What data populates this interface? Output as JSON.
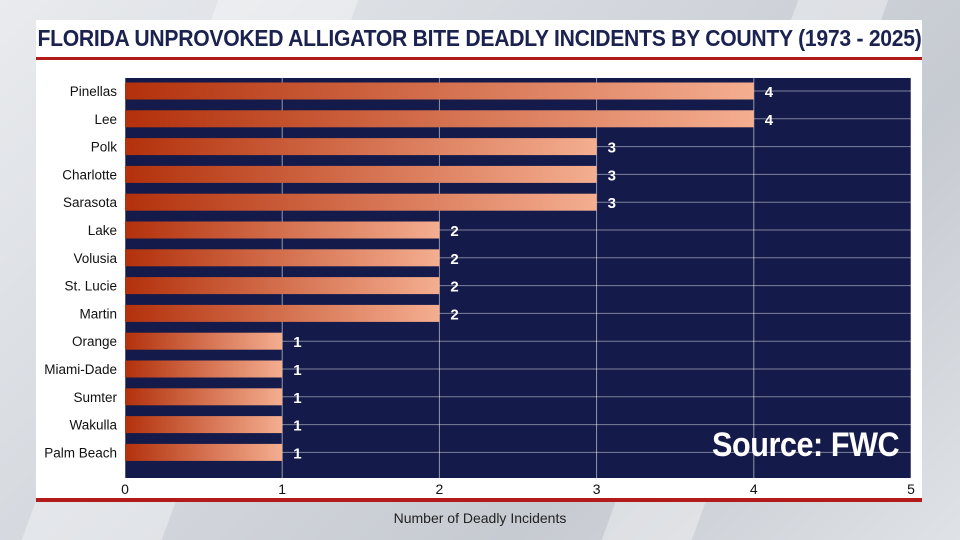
{
  "chart_data": {
    "type": "bar",
    "orientation": "horizontal",
    "title": "FLORIDA UNPROVOKED ALLIGATOR BITE DEADLY INCIDENTS BY COUNTY (1973 - 2025)",
    "xlabel": "Number of Deadly Incidents",
    "ylabel": "",
    "xlim": [
      0,
      5
    ],
    "xticks": [
      "0",
      "1",
      "2",
      "3",
      "4",
      "5"
    ],
    "categories": [
      "Pinellas",
      "Lee",
      "Polk",
      "Charlotte",
      "Sarasota",
      "Lake",
      "Volusia",
      "St. Lucie",
      "Martin",
      "Orange",
      "Miami-Dade",
      "Sumter",
      "Wakulla",
      "Palm Beach"
    ],
    "values": [
      4,
      4,
      3,
      3,
      3,
      2,
      2,
      2,
      2,
      1,
      1,
      1,
      1,
      1
    ],
    "grid": true,
    "source": "Source: FWC",
    "colors": {
      "plot_bg": "#141a4a",
      "bar_start": "#b3310c",
      "bar_end": "#f4ae90",
      "accent": "#b31b1b",
      "grid": "#ffffff"
    }
  }
}
